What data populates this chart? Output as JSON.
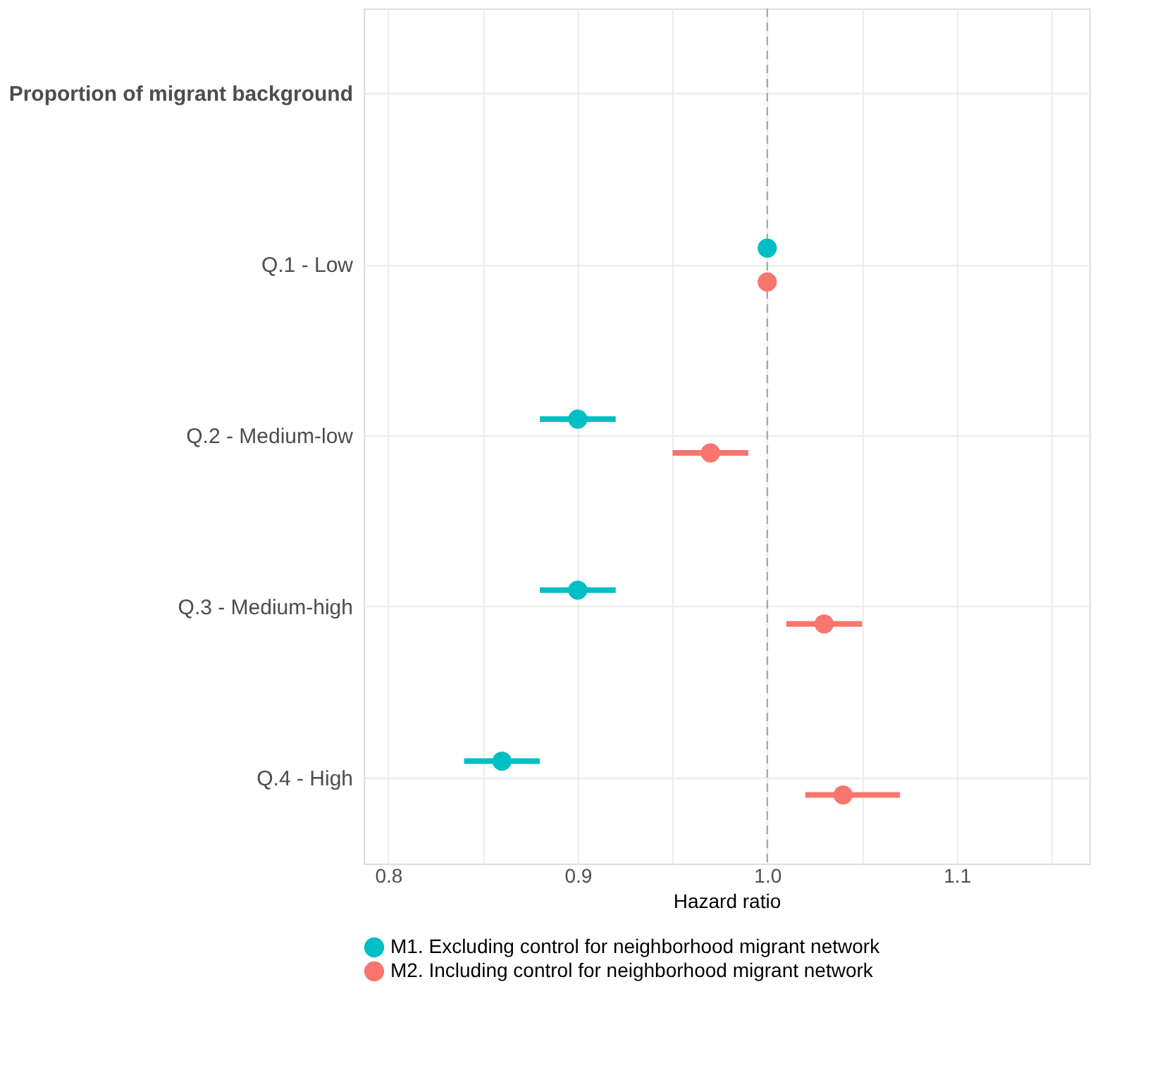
{
  "chart_data": {
    "type": "scatter",
    "orientation": "horizontal",
    "categories": [
      "Proportion of migrant background",
      "Q.1 - Low",
      "Q.2 - Medium-low",
      "Q.3 - Medium-high",
      "Q.4 - High"
    ],
    "series": [
      {
        "name": "M1. Excluding control for neighborhood migrant network",
        "color": "#00bfc4",
        "values": [
          null,
          1.0,
          0.9,
          0.9,
          0.86
        ],
        "errors": [
          null,
          null,
          [
            0.88,
            0.92
          ],
          [
            0.88,
            0.92
          ],
          [
            0.84,
            0.88
          ]
        ]
      },
      {
        "name": "M2. Including control for neighborhood migrant network",
        "color": "#f8766d",
        "values": [
          null,
          1.0,
          0.97,
          1.03,
          1.04
        ],
        "errors": [
          null,
          null,
          [
            0.95,
            0.99
          ],
          [
            1.01,
            1.05
          ],
          [
            1.02,
            1.07
          ]
        ]
      }
    ],
    "xlabel": "Hazard ratio",
    "xlim": [
      0.787,
      1.17
    ],
    "xticks": [
      0.8,
      {
        "value": 0.85,
        "label": null
      },
      0.9,
      {
        "value": 0.95,
        "label": null
      },
      {
        "value": 1.0,
        "label": "1.0"
      },
      {
        "value": 1.05,
        "label": null
      },
      1.1,
      {
        "value": 1.15,
        "label": null
      }
    ],
    "ref_lines": [
      {
        "axis": "x",
        "value": 1.0,
        "color": "#aaaaaa",
        "line_style": "dashed"
      }
    ],
    "grid": true,
    "legend": "bottom",
    "marker": "circle"
  }
}
